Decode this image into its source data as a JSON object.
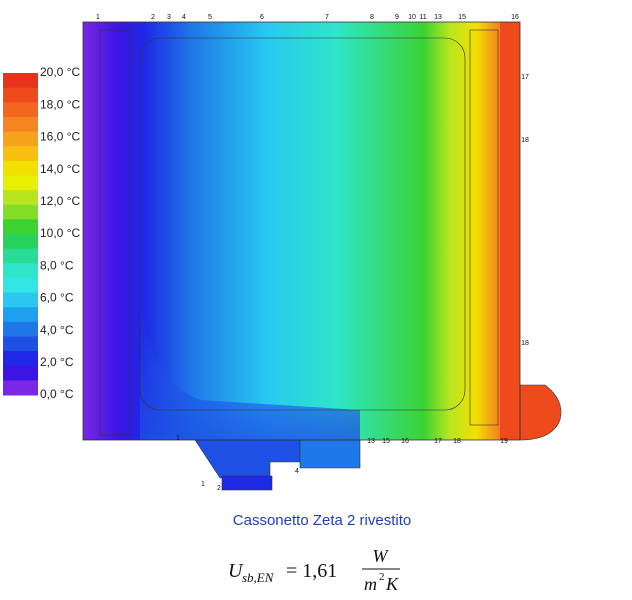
{
  "legend": {
    "labels": [
      "20,0 °C",
      "18,0 °C",
      "16,0 °C",
      "14,0 °C",
      "12,0 °C",
      "10,0 °C",
      "8,0 °C",
      "6,0 °C",
      "4,0 °C",
      "2,0 °C",
      "0,0 °C"
    ],
    "colors": [
      "#e8321c",
      "#ee4a1c",
      "#f2661e",
      "#f5851e",
      "#f6a21a",
      "#f7c010",
      "#f4e000",
      "#e6f000",
      "#b8e61e",
      "#82dc28",
      "#3cd232",
      "#28d25a",
      "#28dc96",
      "#2ee6c8",
      "#32e6e6",
      "#28c8f0",
      "#1ea0f0",
      "#1e78e8",
      "#1e50e6",
      "#1e28e6",
      "#3c14e6",
      "#7828e6"
    ]
  },
  "nodes": {
    "top": [
      "1",
      "2",
      "3",
      "4",
      "5",
      "6",
      "7",
      "8",
      "9",
      "10",
      "11",
      "13",
      "15",
      "16"
    ],
    "right": [
      "17",
      "18",
      "18"
    ],
    "bottom": [
      "1",
      "2",
      "1",
      "4",
      "13",
      "15",
      "16",
      "17",
      "18",
      "19"
    ]
  },
  "caption": "Cassonetto Zeta 2 rivestito",
  "formula": {
    "lhs": "U",
    "lhs_sub": "sb,EN",
    "rhs": "= 1,61",
    "numerator": "W",
    "denominator": "m",
    "denominator_exp": "2",
    "denominator_end": "K"
  }
}
